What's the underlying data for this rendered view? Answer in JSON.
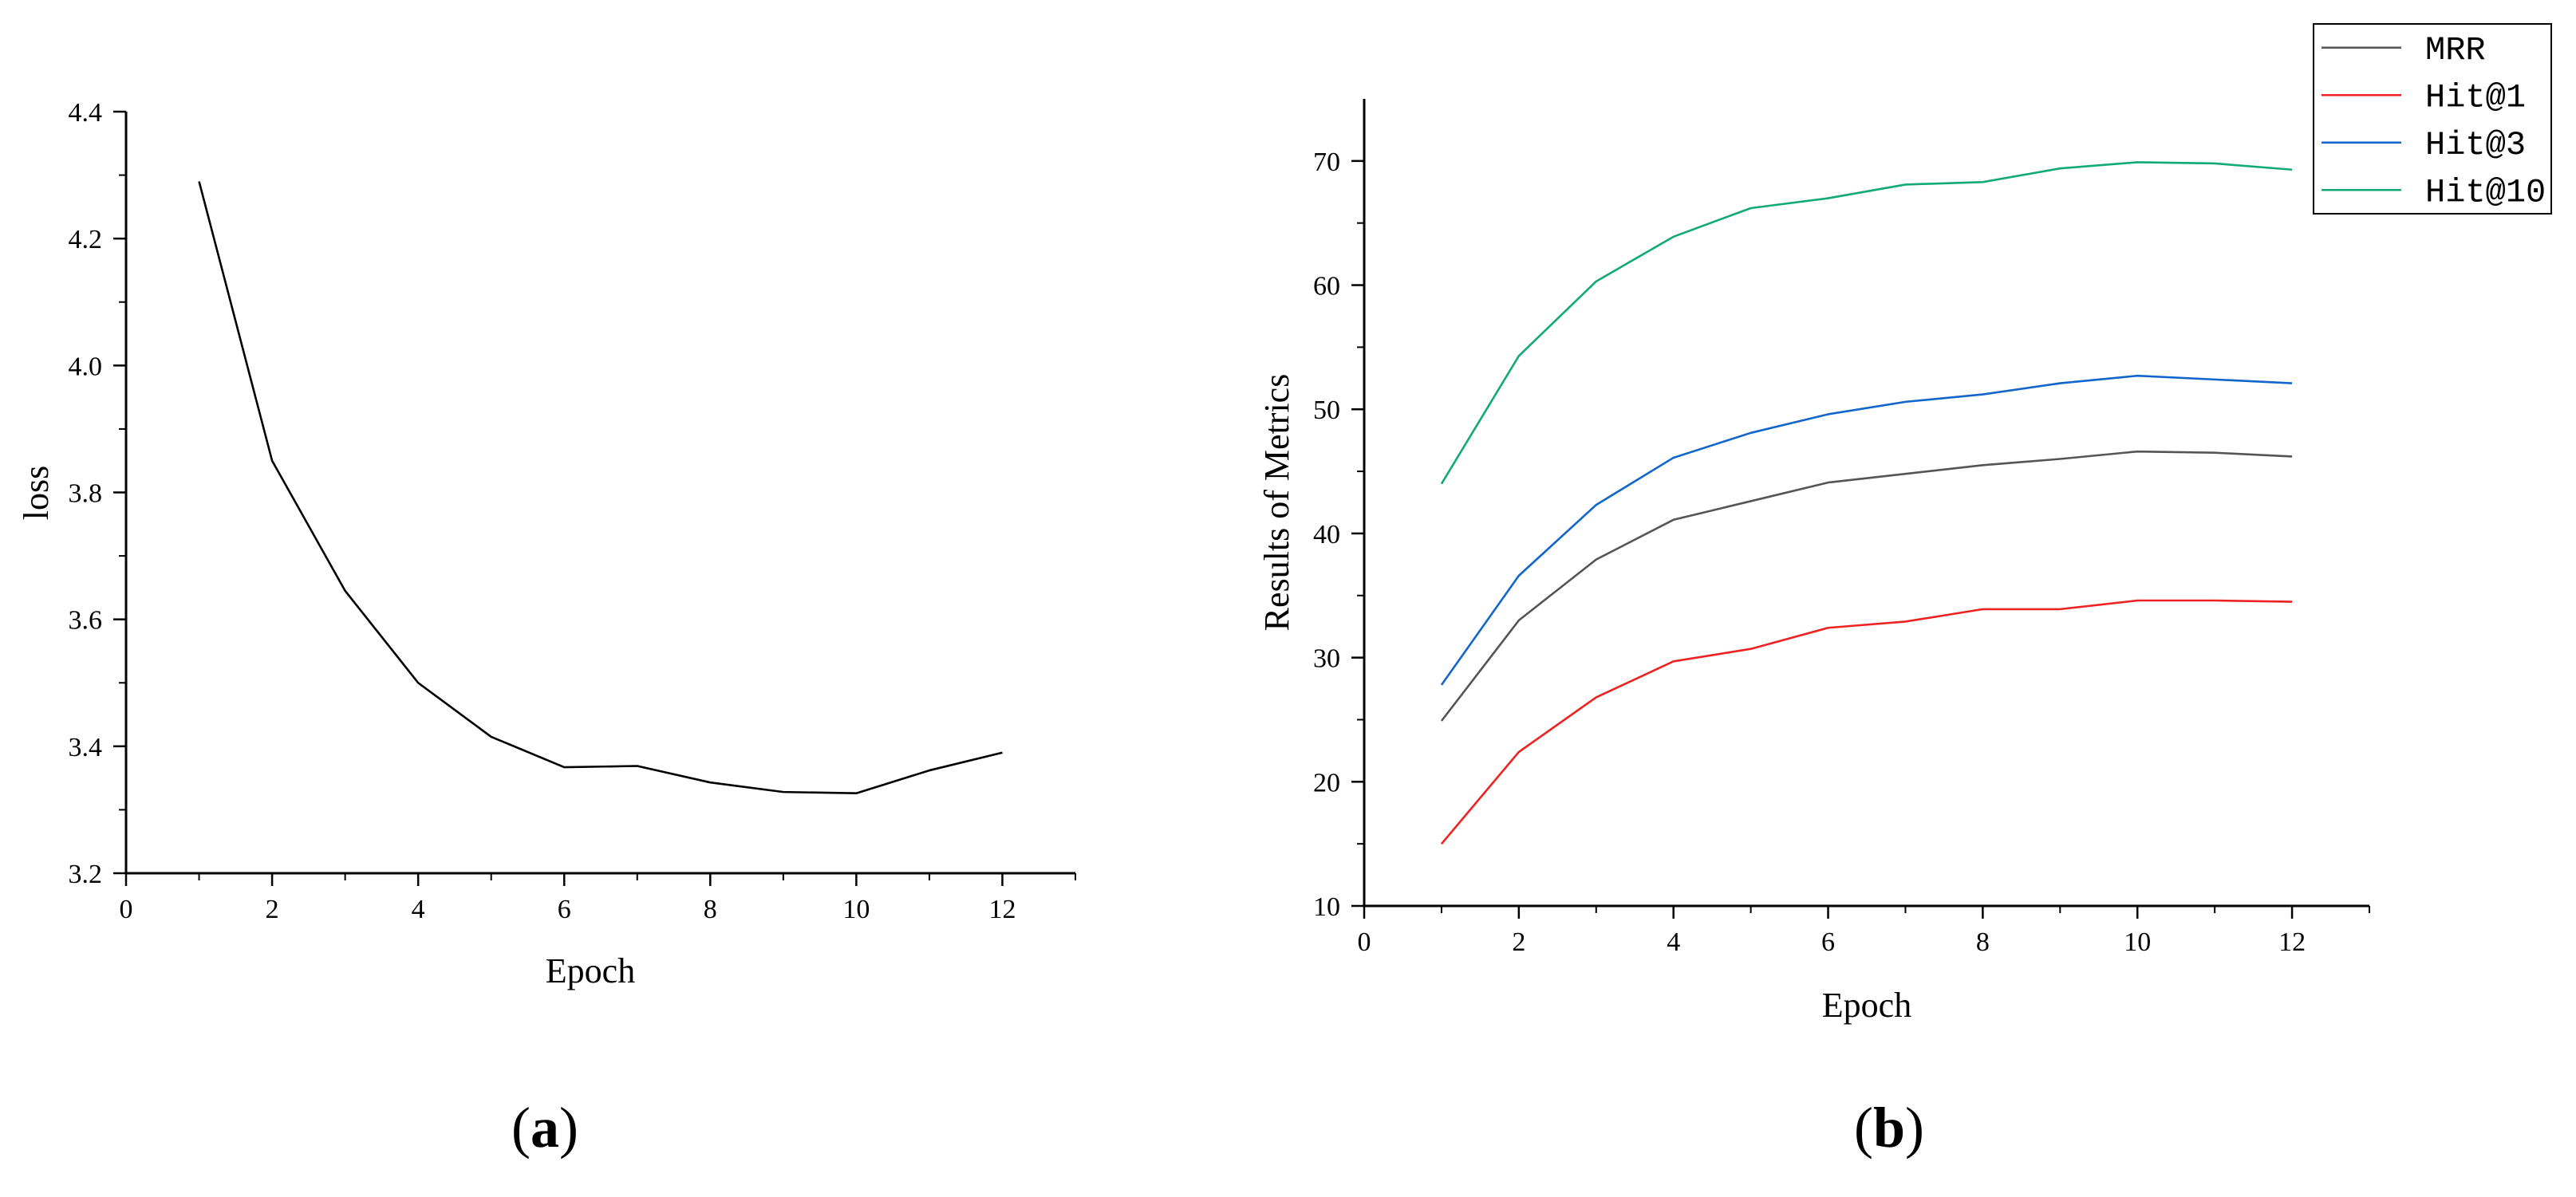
{
  "chart_data": [
    {
      "type": "line",
      "panel_label": "a",
      "title": "",
      "xlabel": "Epoch",
      "ylabel": "loss",
      "xlim": [
        0,
        13
      ],
      "ylim": [
        3.2,
        4.4
      ],
      "xticks": [
        0,
        2,
        4,
        6,
        8,
        10,
        12
      ],
      "xtick_labels": [
        "0",
        "2",
        "4",
        "6",
        "8",
        "10",
        "12"
      ],
      "yticks": [
        3.2,
        3.4,
        3.6,
        3.8,
        4.0,
        4.2,
        4.4
      ],
      "ytick_labels": [
        "3.2",
        "3.4",
        "3.6",
        "3.8",
        "4.0",
        "4.2",
        "4.4"
      ],
      "grid": false,
      "x": [
        1,
        2,
        3,
        4,
        5,
        6,
        7,
        8,
        9,
        10,
        11,
        12
      ],
      "series": [
        {
          "name": "loss",
          "color": "#000000",
          "values": [
            4.29,
            3.85,
            3.645,
            3.5,
            3.415,
            3.367,
            3.369,
            3.343,
            3.328,
            3.326,
            3.362,
            3.39
          ]
        }
      ]
    },
    {
      "type": "line",
      "panel_label": "b",
      "title": "",
      "xlabel": "Epoch",
      "ylabel": "Results of Metrics",
      "xlim": [
        0,
        13
      ],
      "ylim": [
        10,
        75
      ],
      "xticks": [
        0,
        2,
        4,
        6,
        8,
        10,
        12
      ],
      "xtick_labels": [
        "0",
        "2",
        "4",
        "6",
        "8",
        "10",
        "12"
      ],
      "yticks": [
        10,
        20,
        30,
        40,
        50,
        60,
        70
      ],
      "ytick_labels": [
        "10",
        "20",
        "30",
        "40",
        "50",
        "60",
        "70"
      ],
      "grid": false,
      "legend_position": "top-right",
      "x": [
        1,
        2,
        3,
        4,
        5,
        6,
        7,
        8,
        9,
        10,
        11,
        12
      ],
      "series": [
        {
          "name": "MRR",
          "color": "#555555",
          "values": [
            24.9,
            33.0,
            37.9,
            41.1,
            42.6,
            44.1,
            44.8,
            45.5,
            46.0,
            46.6,
            46.5,
            46.2
          ]
        },
        {
          "name": "Hit@1",
          "color": "#ee2222",
          "values": [
            15.0,
            22.4,
            26.8,
            29.7,
            30.7,
            32.4,
            32.9,
            33.9,
            33.9,
            34.6,
            34.6,
            34.5
          ]
        },
        {
          "name": "Hit@3",
          "color": "#1166cc",
          "values": [
            27.8,
            36.6,
            42.3,
            46.1,
            48.1,
            49.6,
            50.6,
            51.2,
            52.1,
            52.7,
            52.4,
            52.1
          ]
        },
        {
          "name": "Hit@10",
          "color": "#11aa77",
          "values": [
            44.0,
            54.3,
            60.3,
            63.9,
            66.2,
            67.0,
            68.1,
            68.3,
            69.4,
            69.9,
            69.8,
            69.3
          ]
        }
      ]
    }
  ]
}
